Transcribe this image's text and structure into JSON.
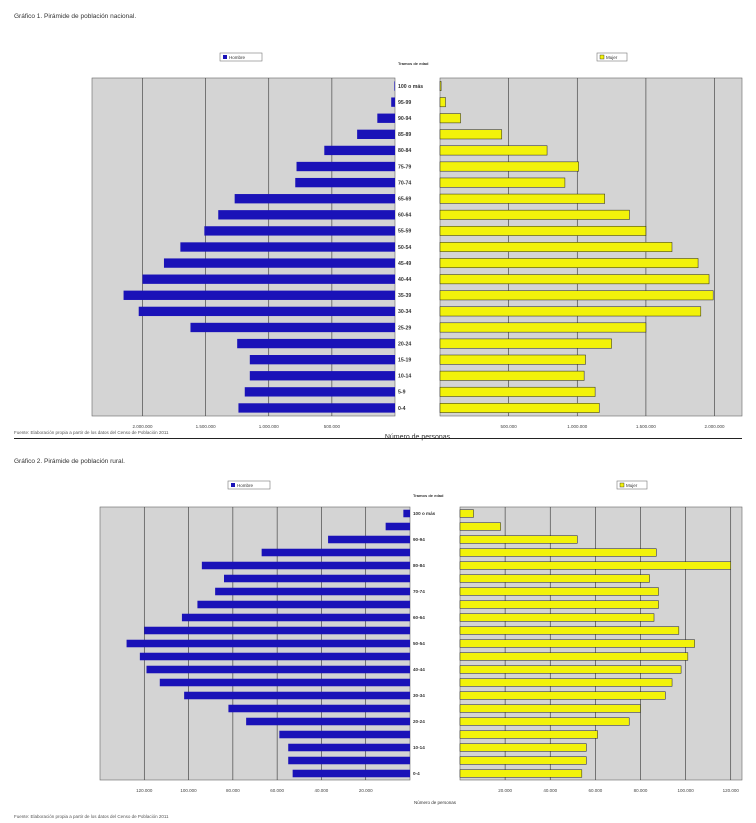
{
  "captions": {
    "chart1": "Gráfico 1. Pirámide de población nacional.",
    "chart2": "Gráfico 2. Pirámide de población rural."
  },
  "sources": {
    "chart1": "Fuente: Elaboración propia a partir de los datos del Censo de Población 2011",
    "chart2": "Fuente: Elaboración propia a partir de los datos del Censo de Población 2011"
  },
  "colors": {
    "male": "#1a12b8",
    "female": "#f2f20a",
    "plot_bg": "#d4d4d4"
  },
  "chart_data": [
    {
      "type": "bar",
      "orientation": "horizontal-pyramid",
      "legend_left": "Hombre",
      "legend_right": "Mujer",
      "center_header": "Tramos de edad",
      "xlabel": "Número de personas",
      "tick_labels_left": [
        "2.000.000",
        "1.500.000",
        "1.000.000",
        "500.000"
      ],
      "tick_labels_right": [
        "500.000",
        "1.000.000",
        "1.500.000",
        "2.000.000"
      ],
      "tick_values": [
        500000,
        1000000,
        1500000,
        2000000
      ],
      "xlim": [
        2400000,
        2200000
      ],
      "categories": [
        "0-4",
        "5-9",
        "10-14",
        "15-19",
        "20-24",
        "25-29",
        "30-34",
        "35-39",
        "40-44",
        "45-49",
        "50-54",
        "55-59",
        "60-64",
        "65-69",
        "70-74",
        "75-79",
        "80-84",
        "85-89",
        "90-94",
        "95-99",
        "100 o más"
      ],
      "category_labels": [
        "0-4",
        "5-9",
        "10-14",
        "15-19",
        "20-24",
        "25-29",
        "30-34",
        "35-39",
        "40-44",
        "45-49",
        "50-54",
        "55-59",
        "60-64",
        "65-69",
        "70-74",
        "75-79",
        "80-84",
        "85-89",
        "90-94",
        "95-99",
        "100 o más"
      ],
      "series": [
        {
          "name": "Hombre",
          "side": "left",
          "values": [
            1240000,
            1190000,
            1150000,
            1150000,
            1250000,
            1620000,
            2030000,
            2150000,
            2000000,
            1830000,
            1700000,
            1510000,
            1400000,
            1270000,
            790000,
            780000,
            560000,
            300000,
            140000,
            30000,
            5000
          ]
        },
        {
          "name": "Mujer",
          "side": "right",
          "values": [
            1160000,
            1130000,
            1050000,
            1060000,
            1250000,
            1500000,
            1900000,
            1990000,
            1960000,
            1880000,
            1690000,
            1500000,
            1380000,
            1200000,
            910000,
            1010000,
            780000,
            450000,
            150000,
            40000,
            8000
          ]
        }
      ]
    },
    {
      "type": "bar",
      "orientation": "horizontal-pyramid",
      "legend_left": "Hombre",
      "legend_right": "Mujer",
      "center_header": "Tramos de edad",
      "xlabel": "Número de personas",
      "tick_labels_left": [
        "120.000",
        "100.000",
        "80.000",
        "60.000",
        "40.000",
        "20.000"
      ],
      "tick_labels_right": [
        "20.000",
        "40.000",
        "60.000",
        "80.000",
        "100.000",
        "120.000"
      ],
      "tick_values": [
        20000,
        40000,
        60000,
        80000,
        100000,
        120000
      ],
      "xlim": [
        140000,
        125000
      ],
      "categories": [
        "0-4",
        "5-9",
        "10-14",
        "15-19",
        "20-24",
        "25-29",
        "30-34",
        "35-39",
        "40-44",
        "45-49",
        "50-54",
        "55-59",
        "60-64",
        "65-69",
        "70-74",
        "75-79",
        "80-84",
        "85-89",
        "90-94",
        "95-99",
        "100 o más"
      ],
      "category_labels": [
        "0-4",
        "",
        "10-14",
        "",
        "20-24",
        "",
        "30-34",
        "",
        "40-44",
        "",
        "50-54",
        "",
        "60-64",
        "",
        "70-74",
        "",
        "80-84",
        "",
        "90-94",
        "",
        "100 o más"
      ],
      "series": [
        {
          "name": "Hombre",
          "side": "left",
          "values": [
            53000,
            55000,
            55000,
            59000,
            74000,
            82000,
            102000,
            113000,
            119000,
            122000,
            128000,
            120000,
            103000,
            96000,
            88000,
            84000,
            94000,
            67000,
            37000,
            11000,
            3000
          ]
        },
        {
          "name": "Mujer",
          "side": "right",
          "values": [
            54000,
            56000,
            56000,
            61000,
            75000,
            80000,
            91000,
            94000,
            98000,
            101000,
            104000,
            97000,
            86000,
            88000,
            88000,
            84000,
            120000,
            87000,
            52000,
            18000,
            6000
          ]
        }
      ]
    }
  ]
}
